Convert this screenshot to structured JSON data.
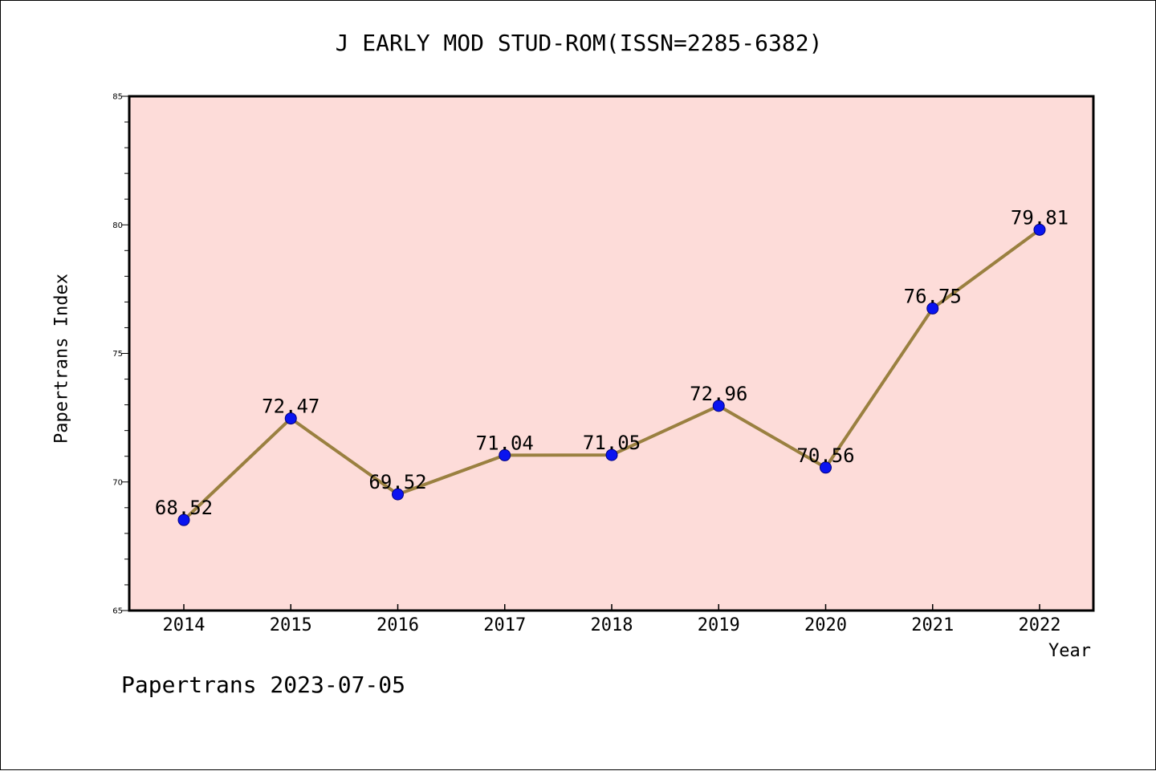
{
  "chart_data": {
    "type": "line",
    "title": "J EARLY MOD STUD-ROM(ISSN=2285-6382)",
    "xlabel": "Year",
    "ylabel": "Papertrans Index",
    "x": [
      "2014",
      "2015",
      "2016",
      "2017",
      "2018",
      "2019",
      "2020",
      "2021",
      "2022"
    ],
    "series": [
      {
        "values": [
          68.52,
          72.47,
          69.52,
          71.04,
          71.05,
          72.96,
          70.56,
          76.75,
          79.81
        ],
        "labels": [
          "68.52",
          "72.47",
          "69.52",
          "71.04",
          "71.05",
          "72.96",
          "70.56",
          "76.75",
          "79.81"
        ]
      }
    ],
    "ylim": [
      65,
      85
    ],
    "yticks": [
      "65",
      "70",
      "75",
      "80",
      "85"
    ],
    "grid": false,
    "legend": "none",
    "colors": {
      "plot_background": "#fddcd9",
      "line": "#9a8040",
      "marker": "#0a14f0",
      "marker_edge": "#000080"
    }
  },
  "footer": {
    "note": "Papertrans 2023-07-05"
  }
}
